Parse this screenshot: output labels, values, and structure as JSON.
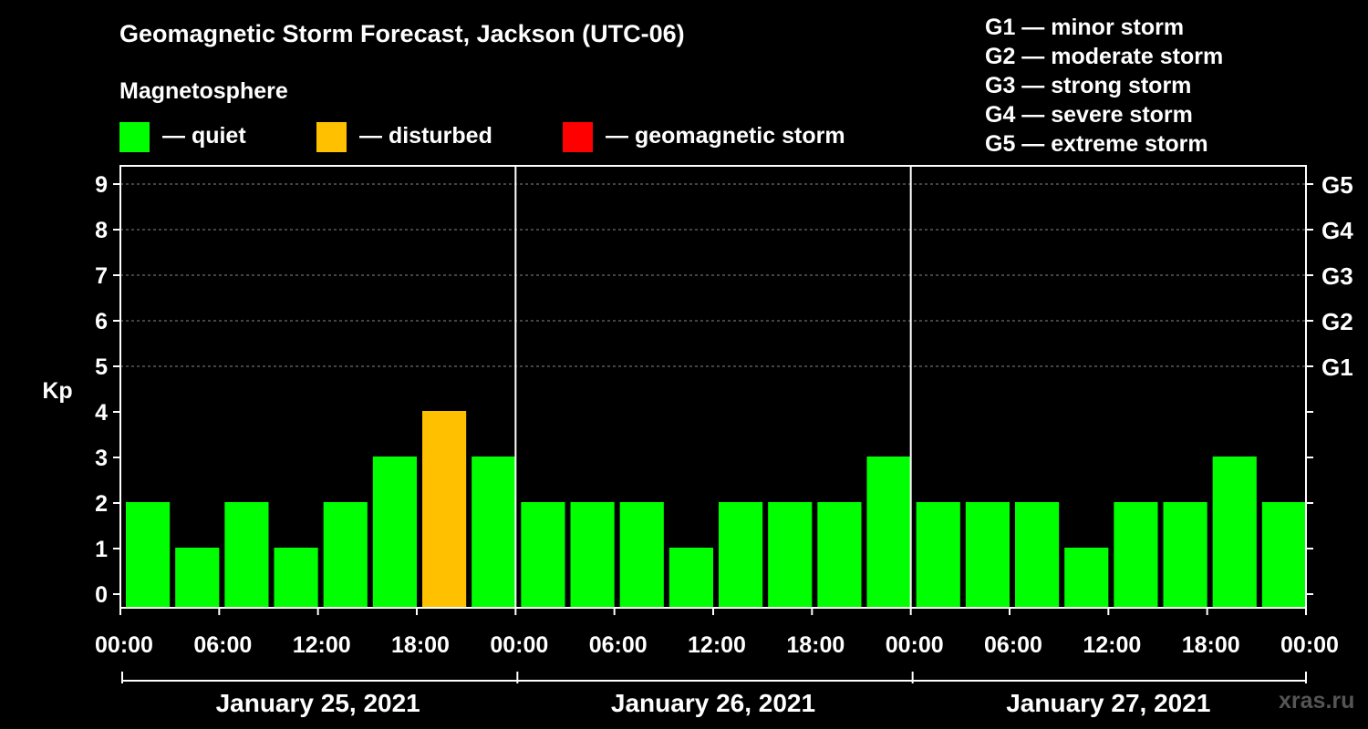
{
  "title": "Geomagnetic Storm Forecast, Jackson (UTC-06)",
  "subtitle": "Magnetosphere",
  "legend": [
    {
      "label": "— quiet",
      "color": "#00ff00"
    },
    {
      "label": "— disturbed",
      "color": "#ffc000"
    },
    {
      "label": "— geomagnetic storm",
      "color": "#ff0000"
    }
  ],
  "storm_scale": [
    "G1 — minor storm",
    "G2 — moderate storm",
    "G3 — strong storm",
    "G4 — severe storm",
    "G5 — extreme storm"
  ],
  "watermark": "xras.ru",
  "chart_data": {
    "type": "bar",
    "ylabel": "Kp",
    "ylim": [
      0,
      9
    ],
    "yticks": [
      "0",
      "1",
      "2",
      "3",
      "4",
      "5",
      "6",
      "7",
      "8",
      "9"
    ],
    "right_axis": [
      {
        "kp": 5,
        "label": "G1"
      },
      {
        "kp": 6,
        "label": "G2"
      },
      {
        "kp": 7,
        "label": "G3"
      },
      {
        "kp": 8,
        "label": "G4"
      },
      {
        "kp": 9,
        "label": "G5"
      }
    ],
    "xtick_labels": [
      "00:00",
      "06:00",
      "12:00",
      "18:00",
      "00:00",
      "06:00",
      "12:00",
      "18:00",
      "00:00",
      "06:00",
      "12:00",
      "18:00",
      "00:00"
    ],
    "days": [
      "January 25, 2021",
      "January 26, 2021",
      "January 27, 2021"
    ],
    "bars_per_day": 8,
    "values": [
      2,
      1,
      2,
      1,
      2,
      3,
      4,
      3,
      2,
      2,
      2,
      1,
      2,
      2,
      2,
      3,
      2,
      2,
      2,
      1,
      2,
      2,
      3,
      2
    ],
    "status": [
      "quiet",
      "quiet",
      "quiet",
      "quiet",
      "quiet",
      "quiet",
      "disturbed",
      "quiet",
      "quiet",
      "quiet",
      "quiet",
      "quiet",
      "quiet",
      "quiet",
      "quiet",
      "quiet",
      "quiet",
      "quiet",
      "quiet",
      "quiet",
      "quiet",
      "quiet",
      "quiet",
      "quiet"
    ],
    "status_colors": {
      "quiet": "#00ff00",
      "disturbed": "#ffc000",
      "storm": "#ff0000"
    },
    "grid": "dashed at G-levels"
  }
}
